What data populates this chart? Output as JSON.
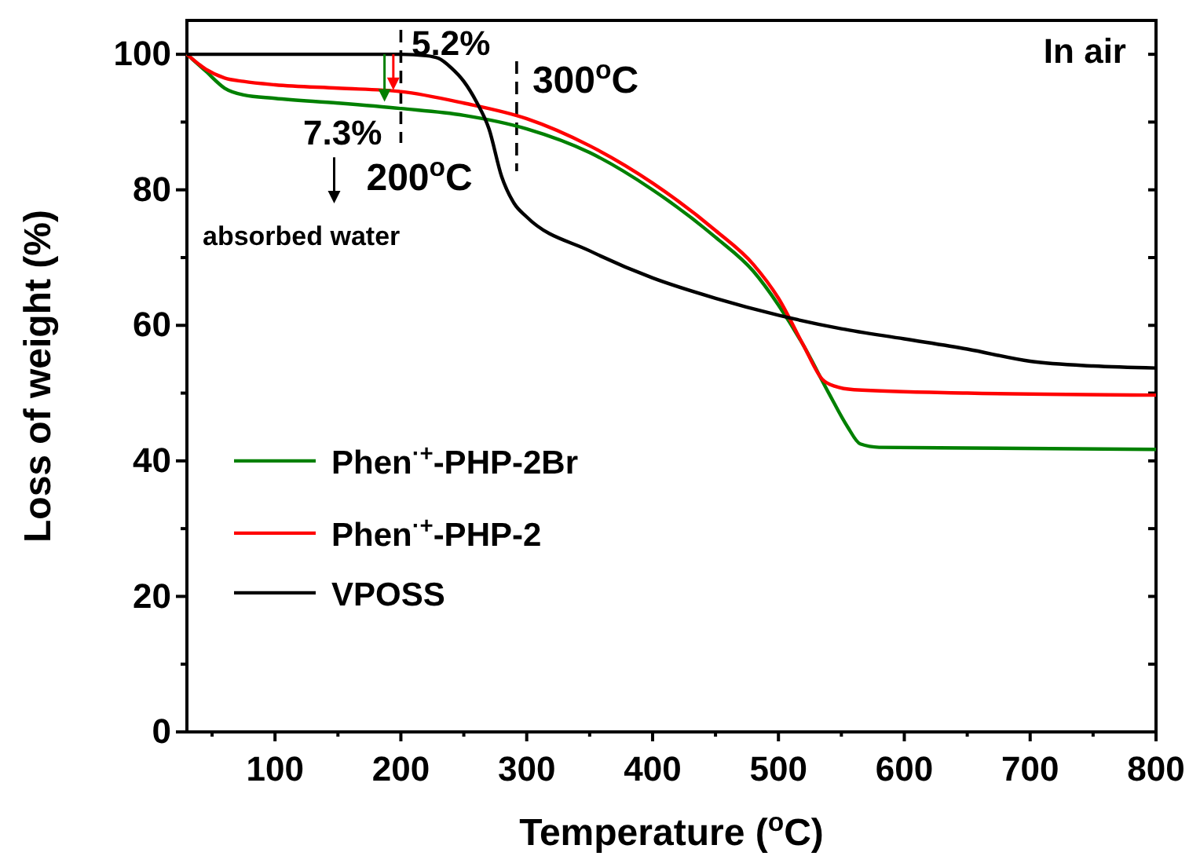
{
  "chart_data": {
    "type": "line",
    "xlabel": "Temperature ($^{o}$C)",
    "ylabel": "Loss of weight (%)",
    "xlim": [
      30,
      800
    ],
    "xticks": [
      100,
      200,
      300,
      400,
      500,
      600,
      700,
      800
    ],
    "ylim": [
      0,
      105
    ],
    "yticks": [
      0,
      20,
      40,
      60,
      80,
      100
    ],
    "legend": "bottom left",
    "line_style": "solid",
    "marker": "none",
    "grid": false,
    "series": [
      {
        "name": "Phen$^{·+}$-PHP-2Br",
        "color": "#008000",
        "x": [
          30,
          45,
          60,
          75,
          100,
          150,
          200,
          250,
          300,
          350,
          400,
          450,
          480,
          500,
          520,
          540,
          555,
          565,
          580,
          650,
          800
        ],
        "values": [
          100,
          97.5,
          95,
          94,
          93.5,
          92.8,
          92,
          91,
          89,
          85.5,
          80,
          73,
          68,
          63,
          57,
          50,
          45,
          42.5,
          42,
          41.9,
          41.7
        ]
      },
      {
        "name": "Phen$^{·+}$-PHP-2",
        "color": "#ff0000",
        "x": [
          30,
          45,
          60,
          75,
          100,
          150,
          200,
          250,
          300,
          350,
          400,
          450,
          480,
          500,
          520,
          535,
          545,
          560,
          650,
          800
        ],
        "values": [
          100,
          97.8,
          96.5,
          96,
          95.5,
          95,
          94.5,
          92.8,
          90.5,
          86.5,
          81,
          74,
          69,
          64,
          57,
          52,
          51,
          50.5,
          50,
          49.7
        ]
      },
      {
        "name": "VPOSS",
        "color": "#000000",
        "x": [
          30,
          100,
          200,
          220,
          230,
          240,
          250,
          260,
          270,
          280,
          290,
          300,
          350,
          400,
          450,
          500,
          550,
          600,
          650,
          700,
          750,
          800
        ],
        "values": [
          100,
          100,
          100,
          99.8,
          99.4,
          98,
          96,
          93,
          89,
          82,
          78,
          76,
          71,
          67,
          64,
          61.5,
          59.5,
          58,
          56.5,
          54.7,
          54,
          53.7
        ]
      }
    ],
    "ref_lines": [
      {
        "axis": "x",
        "value": 200,
        "label": "200$^{o}$C",
        "line_style": "dashed",
        "color": "#000000"
      },
      {
        "axis": "x",
        "value": 292,
        "label": "300$^{o}$C",
        "line_style": "dashed",
        "color": "#000000"
      }
    ],
    "annotations": [
      "5.2%",
      "7.3%",
      "absorbed water",
      "In air"
    ]
  }
}
